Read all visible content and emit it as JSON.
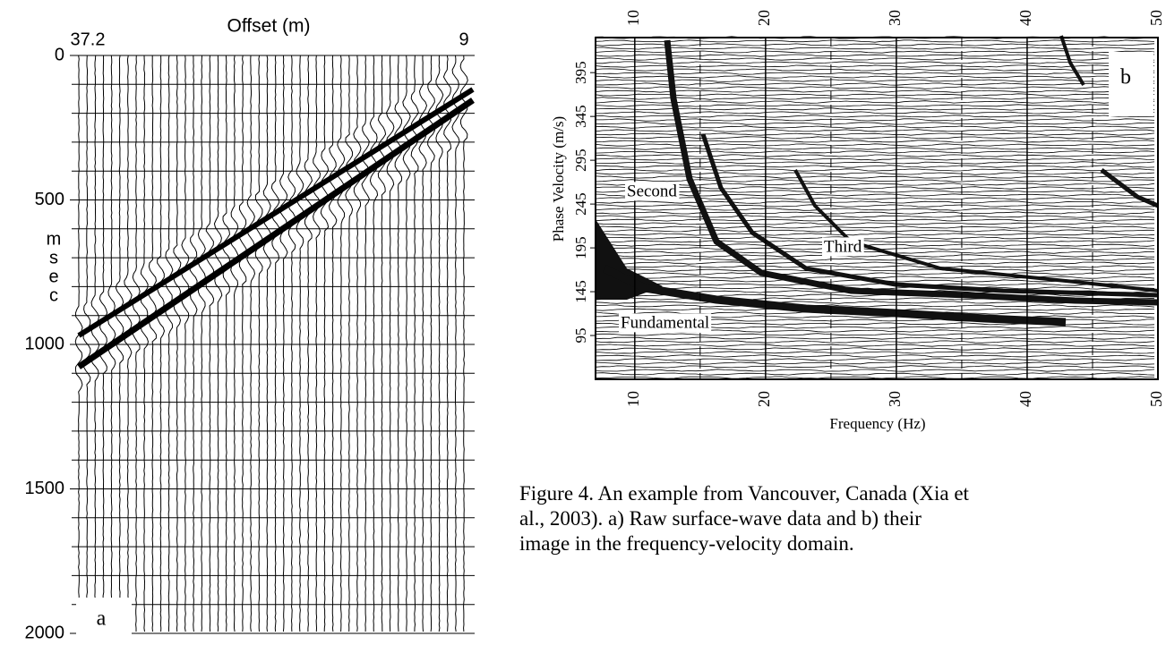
{
  "panel_a": {
    "title": "Offset (m)",
    "offset_labels": [
      "37.2",
      "9"
    ],
    "offset_range": [
      37.2,
      9
    ],
    "yticks": [
      0,
      500,
      1000,
      1500,
      2000
    ],
    "unit_letters": [
      "m",
      "s",
      "e",
      "c"
    ],
    "letter": "a"
  },
  "panel_b": {
    "xlabel": "Frequency (Hz)",
    "ylabel": "Phase Velocity (m/s)",
    "xticks": [
      10,
      20,
      30,
      40,
      50
    ],
    "xlim": [
      7,
      50
    ],
    "yticks": [
      95,
      145,
      195,
      245,
      295,
      345,
      395
    ],
    "ylim": [
      45,
      435
    ],
    "mode_labels": [
      "Second",
      "Third",
      "Fundamental"
    ],
    "letter": "b"
  },
  "caption": [
    "Figure 4. An example from Vancouver, Canada (Xia et",
    "al., 2003). a) Raw surface-wave data and b) their",
    "image in the frequency-velocity domain."
  ]
}
